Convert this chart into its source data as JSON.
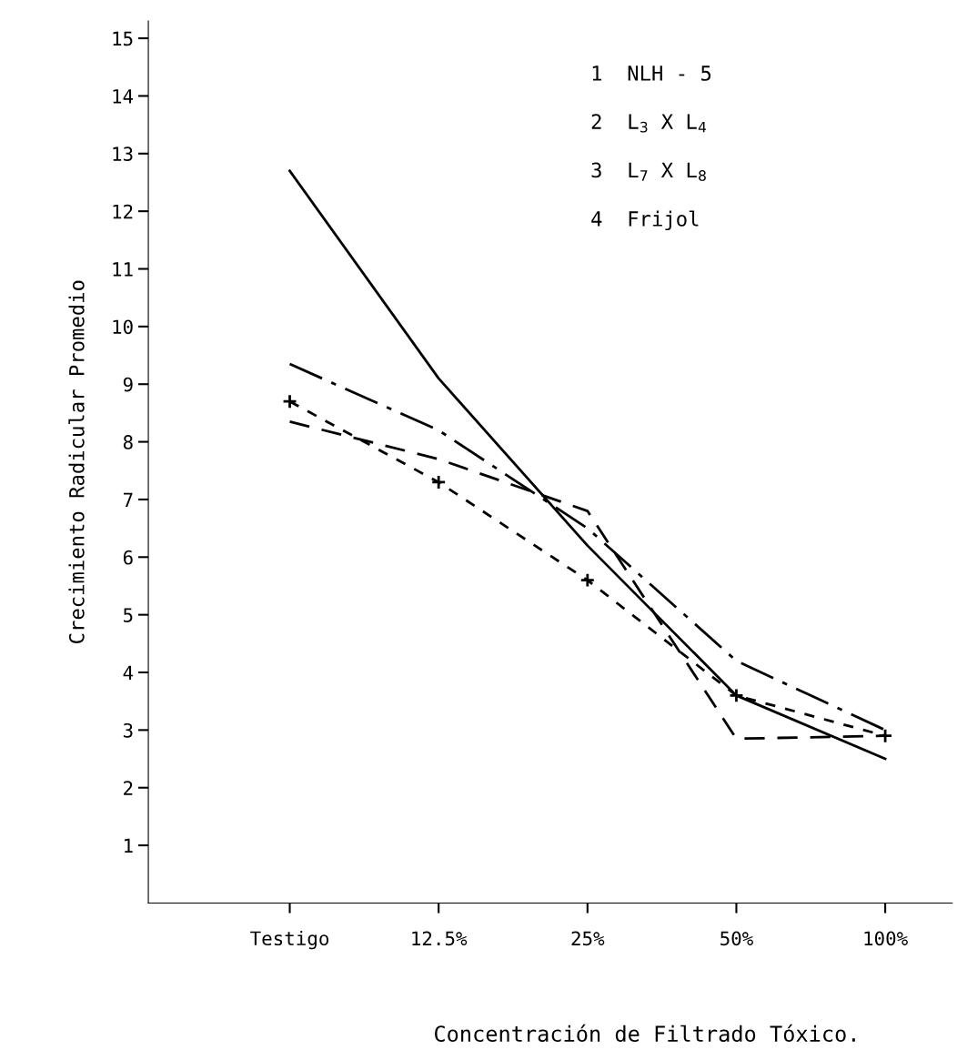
{
  "chart_data": {
    "type": "line",
    "xlabel": "Concentración de Filtrado Tóxico.",
    "ylabel": "Crecimiento Radicular Promedio",
    "categories": [
      "Testigo",
      "12.5%",
      "25%",
      "50%",
      "100%"
    ],
    "series": [
      {
        "color": "#000000",
        "line_style": "solid",
        "values": [
          12.7,
          9.1,
          6.2,
          3.6,
          2.5
        ]
      },
      {
        "color": "#000000",
        "line_style": "dashed",
        "values": [
          9.35,
          8.2,
          6.5,
          4.2,
          3.0
        ]
      },
      {
        "color": "#000000",
        "line_style": "dashed",
        "marker": "cross",
        "values": [
          8.7,
          7.3,
          5.6,
          3.6,
          2.9
        ]
      },
      {
        "color": "#000000",
        "line_style": "dashed",
        "values": [
          8.35,
          7.7,
          6.8,
          2.85,
          2.9
        ]
      }
    ],
    "ylim": [
      0,
      15.3
    ],
    "yticks": [
      1,
      2,
      3,
      4,
      5,
      6,
      7,
      8,
      9,
      10,
      11,
      12,
      13,
      14,
      15
    ],
    "grid": false,
    "annotations": [
      "1  NLH - 5",
      "2  L$_{3}$ X L$_{4}$",
      "3  L$_{7}$ X L$_{8}$",
      "4  Frijol"
    ]
  }
}
